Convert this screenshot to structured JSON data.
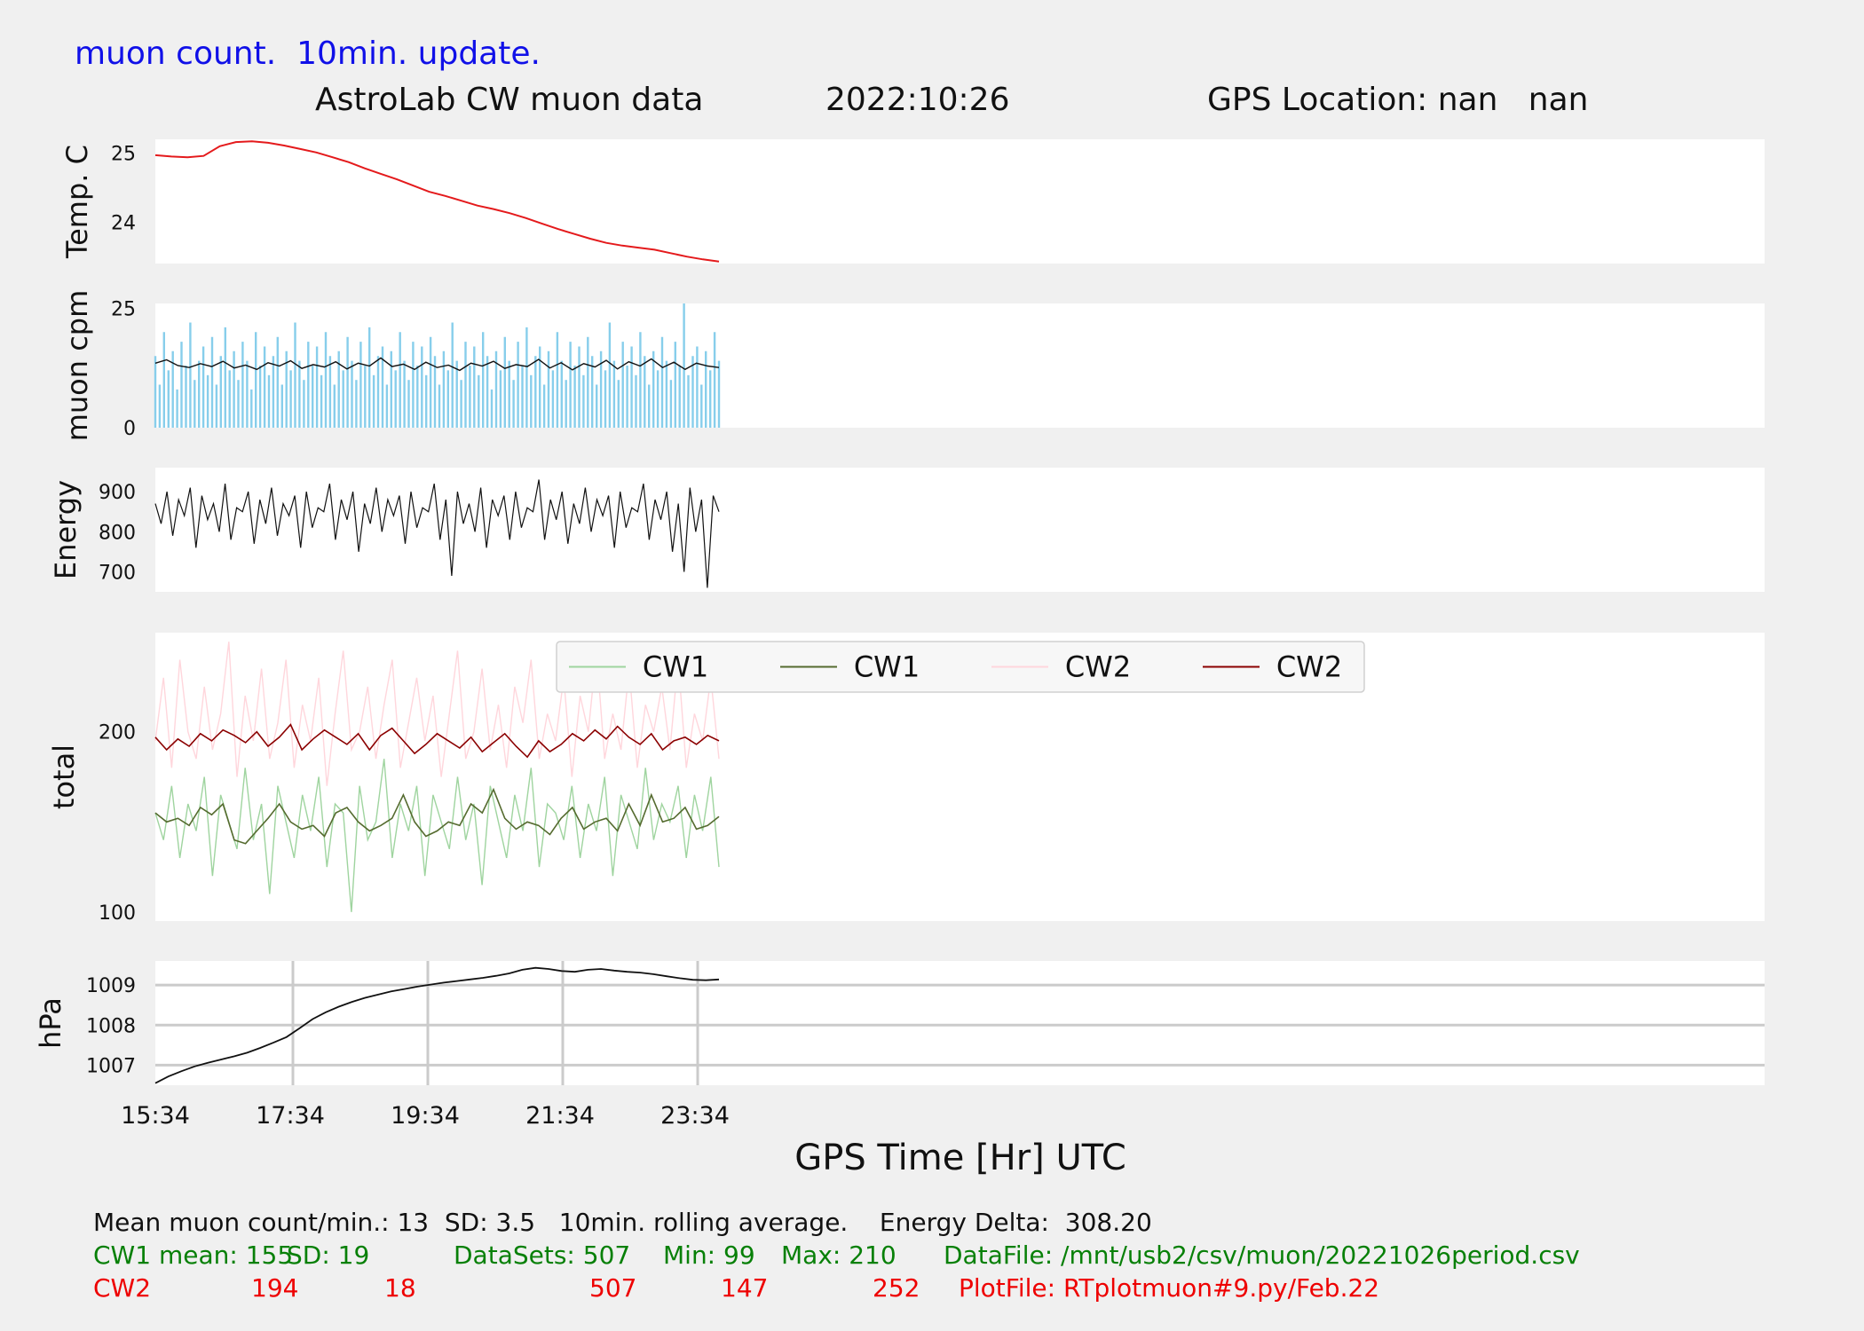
{
  "header": {
    "update_note": "muon count.  10min. update.",
    "title": "AstroLab CW muon data",
    "date": "2022:10:26",
    "gps_location": "GPS Location: nan   nan"
  },
  "colors": {
    "temp_line": "#e41a1c",
    "cpm_bars": "#87ceeb",
    "cpm_avg": "#111111",
    "energy_line": "#111111",
    "cw1_raw": "#9fd49f",
    "cw1_avg": "#556b2f",
    "cw2_raw": "#ffd6dc",
    "cw2_avg": "#8b0000",
    "pressure_line": "#111111",
    "note_blue": "#1010e8",
    "stats_green": "#088008",
    "stats_red": "#ee0000",
    "panel_bg": "#ffffff",
    "figure_bg": "#f0f0f0"
  },
  "chart_data": [
    {
      "type": "line",
      "id": "temperature",
      "ylabel": "Temp. C",
      "yticks": [
        "24",
        "25"
      ],
      "ylim": [
        23.4,
        25.2
      ],
      "x_start": "15:34",
      "x_end": "00:00",
      "grid": false,
      "series": [
        {
          "values": [
            24.97,
            24.95,
            24.94,
            24.96,
            25.1,
            25.16,
            25.17,
            25.15,
            25.11,
            25.06,
            25.01,
            24.94,
            24.87,
            24.78,
            24.7,
            24.62,
            24.53,
            24.44,
            24.38,
            24.31,
            24.24,
            24.19,
            24.13,
            24.06,
            23.98,
            23.9,
            23.83,
            23.76,
            23.7,
            23.66,
            23.63,
            23.6,
            23.55,
            23.5,
            23.46,
            23.43
          ]
        }
      ]
    },
    {
      "type": "bar",
      "id": "muon_cpm",
      "ylabel": "muon cpm",
      "yticks": [
        "0",
        "25"
      ],
      "ylim": [
        0,
        26
      ],
      "x_start": "15:34",
      "x_end": "00:00",
      "grid": false,
      "bar_values": [
        15,
        9,
        20,
        12,
        16,
        8,
        18,
        13,
        22,
        10,
        14,
        17,
        11,
        19,
        9,
        15,
        21,
        12,
        16,
        10,
        18,
        14,
        8,
        20,
        13,
        17,
        11,
        15,
        19,
        9,
        16,
        12,
        22,
        14,
        10,
        18,
        13,
        17,
        11,
        20,
        15,
        9,
        16,
        12,
        19,
        14,
        10,
        18,
        13,
        21,
        11,
        15,
        17,
        9,
        16,
        12,
        20,
        14,
        10,
        18,
        13,
        17,
        11,
        19,
        15,
        9,
        16,
        12,
        22,
        14,
        10,
        18,
        13,
        17,
        11,
        20,
        15,
        8,
        16,
        12,
        19,
        14,
        10,
        18,
        13,
        21,
        11,
        15,
        17,
        9,
        16,
        12,
        20,
        14,
        10,
        18,
        13,
        17,
        11,
        19,
        15,
        9,
        16,
        12,
        22,
        14,
        10,
        18,
        13,
        17,
        11,
        20,
        15,
        9,
        16,
        12,
        19,
        14,
        10,
        18,
        13,
        26,
        11,
        15,
        17,
        9,
        16,
        12,
        20,
        14
      ],
      "avg_values": [
        13.5,
        14.2,
        13.0,
        12.6,
        13.4,
        12.8,
        13.9,
        12.5,
        13.1,
        12.2,
        13.6,
        12.9,
        14.0,
        12.4,
        13.2,
        12.7,
        13.8,
        12.3,
        13.5,
        12.9,
        14.6,
        12.8,
        13.3,
        12.2,
        13.7,
        12.6,
        13.1,
        12.0,
        13.5,
        12.9,
        13.9,
        12.4,
        13.2,
        12.8,
        14.3,
        12.5,
        13.6,
        12.1,
        13.4,
        12.7,
        14.1,
        12.3,
        13.8,
        12.9,
        14.4,
        12.6,
        13.7,
        12.2,
        13.5,
        12.9,
        12.6
      ]
    },
    {
      "type": "line",
      "id": "energy",
      "ylabel": "Energy",
      "yticks": [
        "700",
        "800",
        "900"
      ],
      "ylim": [
        650,
        960
      ],
      "x_start": "15:34",
      "x_end": "00:00",
      "grid": false,
      "series": [
        {
          "values": [
            870,
            820,
            900,
            790,
            880,
            840,
            910,
            760,
            890,
            830,
            870,
            800,
            920,
            780,
            860,
            850,
            900,
            770,
            880,
            820,
            910,
            790,
            870,
            840,
            890,
            760,
            900,
            810,
            860,
            850,
            920,
            780,
            880,
            830,
            900,
            750,
            870,
            820,
            910,
            800,
            880,
            840,
            890,
            770,
            900,
            810,
            860,
            850,
            920,
            780,
            880,
            690,
            900,
            820,
            870,
            800,
            910,
            760,
            880,
            840,
            890,
            780,
            900,
            810,
            860,
            850,
            930,
            780,
            880,
            830,
            900,
            770,
            870,
            820,
            910,
            800,
            880,
            840,
            890,
            760,
            900,
            810,
            860,
            850,
            920,
            780,
            880,
            830,
            900,
            750,
            870,
            700,
            910,
            800,
            880,
            660,
            890,
            850
          ]
        }
      ]
    },
    {
      "type": "line",
      "id": "total",
      "ylabel": "total",
      "yticks": [
        "100",
        "200"
      ],
      "ylim": [
        95,
        255
      ],
      "x_start": "15:34",
      "x_end": "00:00",
      "grid": false,
      "legend": [
        "CW1",
        "CW1",
        "CW2",
        "CW2"
      ],
      "legend_loc": "upper center",
      "series": [
        {
          "role": "raw",
          "values": [
            155,
            140,
            170,
            130,
            160,
            145,
            175,
            120,
            165,
            150,
            135,
            180,
            140,
            160,
            110,
            170,
            150,
            130,
            165,
            145,
            175,
            125,
            160,
            155,
            100,
            170,
            140,
            150,
            185,
            130,
            160,
            145,
            170,
            120,
            165,
            150,
            135,
            175,
            140,
            160,
            115,
            170,
            150,
            130,
            165,
            145,
            180,
            125,
            160,
            155,
            140,
            170,
            130,
            160,
            145,
            175,
            120,
            165,
            150,
            135,
            180,
            140,
            160,
            150,
            170,
            130,
            165,
            145,
            175,
            125
          ]
        },
        {
          "role": "avg",
          "values": [
            155,
            150,
            152,
            148,
            158,
            154,
            160,
            140,
            138,
            145,
            152,
            160,
            150,
            146,
            148,
            142,
            155,
            158,
            150,
            145,
            148,
            152,
            165,
            150,
            142,
            145,
            150,
            148,
            160,
            155,
            168,
            152,
            146,
            150,
            148,
            143,
            152,
            158,
            146,
            150,
            152,
            145,
            160,
            148,
            165,
            150,
            152,
            158,
            146,
            148,
            153
          ]
        },
        {
          "role": "raw",
          "values": [
            195,
            230,
            180,
            240,
            200,
            185,
            225,
            190,
            210,
            250,
            175,
            220,
            195,
            235,
            185,
            205,
            240,
            180,
            215,
            195,
            230,
            170,
            210,
            245,
            190,
            200,
            225,
            185,
            215,
            240,
            180,
            205,
            230,
            195,
            220,
            175,
            210,
            245,
            185,
            200,
            235,
            190,
            215,
            180,
            225,
            205,
            240,
            185,
            210,
            195,
            230,
            175,
            220,
            200,
            245,
            185,
            210,
            190,
            235,
            180,
            215,
            200,
            225,
            190,
            240,
            180,
            210,
            195,
            230,
            185
          ]
        },
        {
          "role": "avg",
          "values": [
            197,
            190,
            196,
            192,
            199,
            195,
            201,
            198,
            194,
            200,
            192,
            197,
            204,
            190,
            196,
            201,
            197,
            193,
            199,
            190,
            198,
            202,
            195,
            188,
            193,
            199,
            195,
            191,
            197,
            189,
            194,
            199,
            192,
            186,
            195,
            189,
            193,
            199,
            195,
            201,
            196,
            203,
            197,
            193,
            199,
            190,
            195,
            197,
            193,
            198,
            195
          ]
        }
      ]
    },
    {
      "type": "line",
      "id": "pressure",
      "ylabel": "hPa",
      "yticks": [
        "1007",
        "1008",
        "1009"
      ],
      "ylim": [
        1006.5,
        1009.6
      ],
      "xlabel": "GPS Time  [Hr] UTC",
      "xticks": [
        "15:34",
        "17:34",
        "19:34",
        "21:34",
        "23:34"
      ],
      "x_start": "15:34",
      "x_end": "00:00",
      "grid": true,
      "series": [
        {
          "values": [
            1006.55,
            1006.72,
            1006.85,
            1006.97,
            1007.06,
            1007.14,
            1007.22,
            1007.31,
            1007.43,
            1007.56,
            1007.7,
            1007.92,
            1008.15,
            1008.32,
            1008.46,
            1008.58,
            1008.68,
            1008.76,
            1008.84,
            1008.9,
            1008.96,
            1009.01,
            1009.06,
            1009.1,
            1009.14,
            1009.18,
            1009.23,
            1009.29,
            1009.38,
            1009.43,
            1009.4,
            1009.35,
            1009.33,
            1009.38,
            1009.4,
            1009.36,
            1009.33,
            1009.31,
            1009.27,
            1009.22,
            1009.17,
            1009.13,
            1009.12,
            1009.14
          ]
        }
      ]
    }
  ],
  "footer": {
    "line1": "Mean muon count/min.: 13  SD: 3.5   10min. rolling average.    Energy Delta:  308.20",
    "cw1_label": "CW1 mean: 155",
    "cw1_sd": "SD: 19",
    "cw1_datasets": "DataSets: 507",
    "cw1_min": "Min: 99",
    "cw1_max": "Max: 210",
    "datafile": "DataFile: /mnt/usb2/csv/muon/20221026period.csv",
    "cw2_label": "CW2",
    "cw2_mean": "194",
    "cw2_sd": "18",
    "cw2_datasets": "507",
    "cw2_min": "147",
    "cw2_max": "252",
    "plotfile": "PlotFile: RTplotmuon#9.py/Feb.22"
  }
}
